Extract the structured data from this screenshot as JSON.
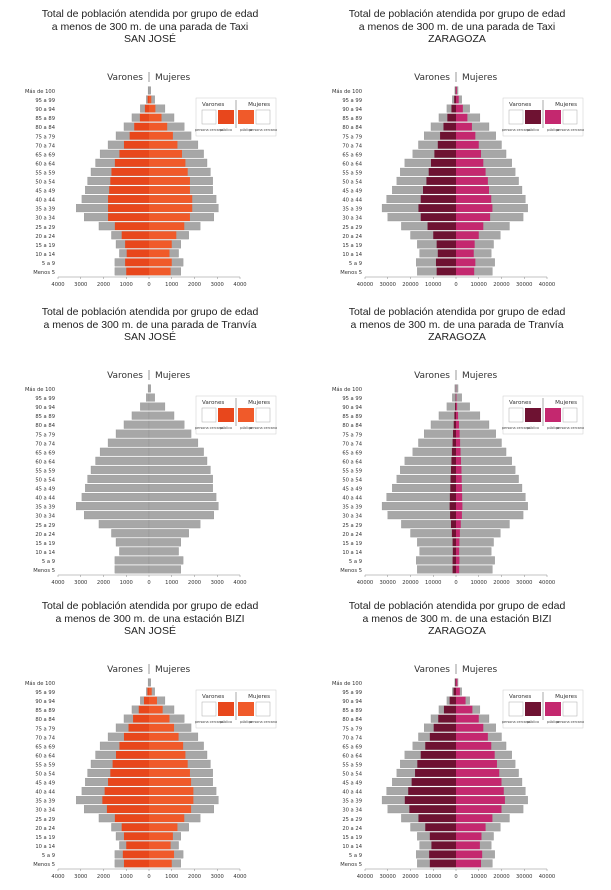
{
  "common": {
    "age_groups": [
      "Menos 5",
      "5 a 9",
      "10 a 14",
      "15 a 19",
      "20 a 24",
      "25 a 29",
      "30 a 34",
      "35 a 39",
      "40 a 44",
      "45 a 49",
      "50 a 54",
      "55 a 59",
      "60 a 64",
      "65 a 69",
      "70 a 74",
      "75 a 79",
      "80 a 84",
      "85 a 89",
      "90 a 94",
      "95 a 99",
      "Más de 100"
    ],
    "header_men": "Varones",
    "header_women": "Mujeres",
    "legend_men": "Varones",
    "legend_women": "Mujeres",
    "legend_sub": [
      "persona cercana",
      "público",
      "público",
      "persona cercana"
    ]
  },
  "colors": {
    "gray_bar": "#a7a7a7",
    "sj_men": "#e8471c",
    "sj_women": "#f05a2a",
    "zg_men": "#6e1232",
    "zg_women": "#c4286f"
  },
  "chart_data": [
    {
      "type": "bar",
      "orientation": "population-pyramid",
      "title": [
        "Total de población atendida por grupo de edad",
        "a menos de 300 m. de una parada de Taxi",
        "SAN JOSÉ"
      ],
      "xlabel": "",
      "ylabel": "",
      "xlim": [
        -4000,
        4000
      ],
      "xticks": [
        "4000",
        "3000",
        "2000",
        "1000",
        "0",
        "1000",
        "2000",
        "3000",
        "4000"
      ],
      "series": [
        {
          "name": "Varones",
          "side": "left",
          "kind": "total",
          "values": [
            1500,
            1500,
            1300,
            1450,
            1650,
            2200,
            2850,
            3200,
            2950,
            2800,
            2700,
            2550,
            2350,
            2150,
            1800,
            1450,
            1100,
            750,
            380,
            120,
            40
          ]
        },
        {
          "name": "Mujeres",
          "side": "right",
          "kind": "total",
          "values": [
            1400,
            1500,
            1300,
            1400,
            1750,
            2250,
            2850,
            3050,
            2950,
            2800,
            2800,
            2700,
            2550,
            2400,
            2150,
            1850,
            1550,
            1100,
            700,
            250,
            80
          ]
        },
        {
          "name": "Varones",
          "side": "left",
          "kind": "highlight",
          "values": [
            1000,
            1050,
            980,
            1050,
            1200,
            1500,
            1800,
            1800,
            1800,
            1750,
            1700,
            1650,
            1500,
            1300,
            1100,
            850,
            650,
            400,
            180,
            60,
            0
          ]
        },
        {
          "name": "Mujeres",
          "side": "right",
          "kind": "highlight",
          "values": [
            950,
            1000,
            900,
            1000,
            1200,
            1550,
            1800,
            1900,
            1900,
            1800,
            1800,
            1700,
            1600,
            1450,
            1250,
            1050,
            800,
            550,
            280,
            100,
            0
          ]
        }
      ]
    },
    {
      "type": "bar",
      "orientation": "population-pyramid",
      "title": [
        "Total de población atendida por grupo de edad",
        "a menos de 300 m. de una parada de Taxi",
        "ZARAGOZA"
      ],
      "xlabel": "",
      "ylabel": "",
      "xlim": [
        -40000,
        40000
      ],
      "xticks": [
        "40000",
        "30000",
        "20000",
        "10000",
        "0",
        "10000",
        "20000",
        "30000",
        "40000"
      ],
      "series": [
        {
          "name": "Varones",
          "side": "left",
          "kind": "total",
          "values": [
            17000,
            17500,
            16000,
            17000,
            20000,
            24000,
            30000,
            32500,
            30500,
            28000,
            26000,
            24500,
            22500,
            19000,
            16500,
            14000,
            11000,
            7500,
            4000,
            1600,
            500
          ]
        },
        {
          "name": "Mujeres",
          "side": "right",
          "kind": "total",
          "values": [
            16000,
            17000,
            15500,
            16500,
            19500,
            23500,
            29500,
            31500,
            30500,
            29000,
            27500,
            26000,
            24500,
            22000,
            20000,
            17500,
            14500,
            10500,
            6000,
            2500,
            900
          ]
        },
        {
          "name": "Varones",
          "side": "left",
          "kind": "highlight",
          "values": [
            8500,
            8800,
            8000,
            8500,
            10000,
            12500,
            15500,
            16500,
            15500,
            14500,
            13000,
            12000,
            11000,
            9500,
            8000,
            7000,
            5500,
            3800,
            2000,
            800,
            200
          ]
        },
        {
          "name": "Mujeres",
          "side": "right",
          "kind": "highlight",
          "values": [
            8000,
            8500,
            7800,
            8200,
            10000,
            12000,
            15000,
            16000,
            15500,
            14500,
            14000,
            13000,
            12000,
            11000,
            10000,
            8500,
            7000,
            5000,
            3000,
            1200,
            400
          ]
        }
      ]
    },
    {
      "type": "bar",
      "orientation": "population-pyramid",
      "title": [
        "Total de población atendida por grupo de edad",
        "a menos de 300 m. de una parada de Tranvía",
        "SAN JOSÉ"
      ],
      "xlabel": "",
      "ylabel": "",
      "xlim": [
        -4000,
        4000
      ],
      "xticks": [
        "4000",
        "3000",
        "2000",
        "1000",
        "0",
        "1000",
        "2000",
        "3000",
        "4000"
      ],
      "series": [
        {
          "name": "Varones",
          "side": "left",
          "kind": "total",
          "values": [
            1500,
            1500,
            1300,
            1450,
            1650,
            2200,
            2850,
            3200,
            2950,
            2800,
            2700,
            2550,
            2350,
            2150,
            1800,
            1450,
            1100,
            750,
            380,
            120,
            40
          ]
        },
        {
          "name": "Mujeres",
          "side": "right",
          "kind": "total",
          "values": [
            1400,
            1500,
            1300,
            1400,
            1750,
            2250,
            2850,
            3050,
            2950,
            2800,
            2800,
            2700,
            2550,
            2400,
            2150,
            1850,
            1550,
            1100,
            700,
            250,
            80
          ]
        }
      ]
    },
    {
      "type": "bar",
      "orientation": "population-pyramid",
      "title": [
        "Total de población atendida por grupo de edad",
        "a menos de 300 m. de una parada de Tranvía",
        "ZARAGOZA"
      ],
      "xlabel": "",
      "ylabel": "",
      "xlim": [
        -40000,
        40000
      ],
      "xticks": [
        "40000",
        "30000",
        "20000",
        "10000",
        "0",
        "10000",
        "20000",
        "30000",
        "40000"
      ],
      "series": [
        {
          "name": "Varones",
          "side": "left",
          "kind": "total",
          "values": [
            17000,
            17500,
            16000,
            17000,
            20000,
            24000,
            30000,
            32500,
            30500,
            28000,
            26000,
            24500,
            22500,
            19000,
            16500,
            14000,
            11000,
            7500,
            4000,
            1600,
            500
          ]
        },
        {
          "name": "Mujeres",
          "side": "right",
          "kind": "total",
          "values": [
            16000,
            17000,
            15500,
            16500,
            19500,
            23500,
            29500,
            31500,
            30500,
            29000,
            27500,
            26000,
            24500,
            22000,
            20000,
            17500,
            14500,
            10500,
            6000,
            2500,
            900
          ]
        },
        {
          "name": "Varones",
          "side": "left",
          "kind": "highlight",
          "values": [
            1500,
            1500,
            1400,
            1500,
            1800,
            2200,
            2600,
            2800,
            2700,
            2500,
            2400,
            2200,
            2000,
            1800,
            1500,
            1300,
            1000,
            700,
            400,
            150,
            50
          ]
        },
        {
          "name": "Mujeres",
          "side": "right",
          "kind": "highlight",
          "values": [
            1400,
            1500,
            1400,
            1500,
            1700,
            2100,
            2600,
            2800,
            2700,
            2600,
            2500,
            2400,
            2200,
            2000,
            1800,
            1600,
            1300,
            900,
            500,
            200,
            80
          ]
        }
      ]
    },
    {
      "type": "bar",
      "orientation": "population-pyramid",
      "title": [
        "Total de población atendida por grupo de edad",
        "a menos de 300 m. de una estación BIZI",
        "SAN JOSÉ"
      ],
      "xlabel": "",
      "ylabel": "",
      "xlim": [
        -4000,
        4000
      ],
      "xticks": [
        "4000",
        "3000",
        "2000",
        "1000",
        "0",
        "1000",
        "2000",
        "3000",
        "4000"
      ],
      "series": [
        {
          "name": "Varones",
          "side": "left",
          "kind": "total",
          "values": [
            1500,
            1500,
            1300,
            1450,
            1650,
            2200,
            2850,
            3200,
            2950,
            2800,
            2700,
            2550,
            2350,
            2150,
            1800,
            1450,
            1100,
            750,
            380,
            120,
            40
          ]
        },
        {
          "name": "Mujeres",
          "side": "right",
          "kind": "total",
          "values": [
            1400,
            1500,
            1300,
            1400,
            1750,
            2250,
            2850,
            3050,
            2950,
            2800,
            2800,
            2700,
            2550,
            2400,
            2150,
            1850,
            1550,
            1100,
            700,
            250,
            80
          ]
        },
        {
          "name": "Varones",
          "side": "left",
          "kind": "highlight",
          "values": [
            1100,
            1150,
            1000,
            1100,
            1200,
            1500,
            1850,
            2050,
            1950,
            1800,
            1700,
            1600,
            1450,
            1300,
            1100,
            900,
            700,
            450,
            220,
            70,
            0
          ]
        },
        {
          "name": "Mujeres",
          "side": "right",
          "kind": "highlight",
          "values": [
            1000,
            1100,
            950,
            1050,
            1250,
            1550,
            1850,
            1950,
            1950,
            1850,
            1800,
            1700,
            1600,
            1500,
            1300,
            1100,
            900,
            600,
            350,
            120,
            0
          ]
        }
      ]
    },
    {
      "type": "bar",
      "orientation": "population-pyramid",
      "title": [
        "Total de población atendida por grupo de edad",
        "a menos de 300 m. de una estación BIZI",
        "ZARAGOZA"
      ],
      "xlabel": "",
      "ylabel": "",
      "xlim": [
        -40000,
        40000
      ],
      "xticks": [
        "40000",
        "30000",
        "20000",
        "10000",
        "0",
        "10000",
        "20000",
        "30000",
        "40000"
      ],
      "series": [
        {
          "name": "Varones",
          "side": "left",
          "kind": "total",
          "values": [
            17000,
            17500,
            16000,
            17000,
            20000,
            24000,
            30000,
            32500,
            30500,
            28000,
            26000,
            24500,
            22500,
            19000,
            16500,
            14000,
            11000,
            7500,
            4000,
            1600,
            500
          ]
        },
        {
          "name": "Mujeres",
          "side": "right",
          "kind": "total",
          "values": [
            16000,
            17000,
            15500,
            16500,
            19500,
            23500,
            29500,
            31500,
            30500,
            29000,
            27500,
            26000,
            24500,
            22000,
            20000,
            17500,
            14500,
            10500,
            6000,
            2500,
            900
          ]
        },
        {
          "name": "Varones",
          "side": "left",
          "kind": "highlight",
          "values": [
            11500,
            11800,
            10800,
            11500,
            13500,
            16500,
            20500,
            22500,
            21000,
            19500,
            18000,
            17000,
            15500,
            13500,
            11500,
            9800,
            7800,
            5300,
            2800,
            1100,
            300
          ]
        },
        {
          "name": "Mujeres",
          "side": "right",
          "kind": "highlight",
          "values": [
            11000,
            11500,
            10500,
            11200,
            13000,
            16000,
            20000,
            21500,
            21000,
            20000,
            19000,
            18000,
            17000,
            15500,
            14000,
            12000,
            10000,
            7200,
            4200,
            1700,
            600
          ]
        }
      ]
    }
  ]
}
